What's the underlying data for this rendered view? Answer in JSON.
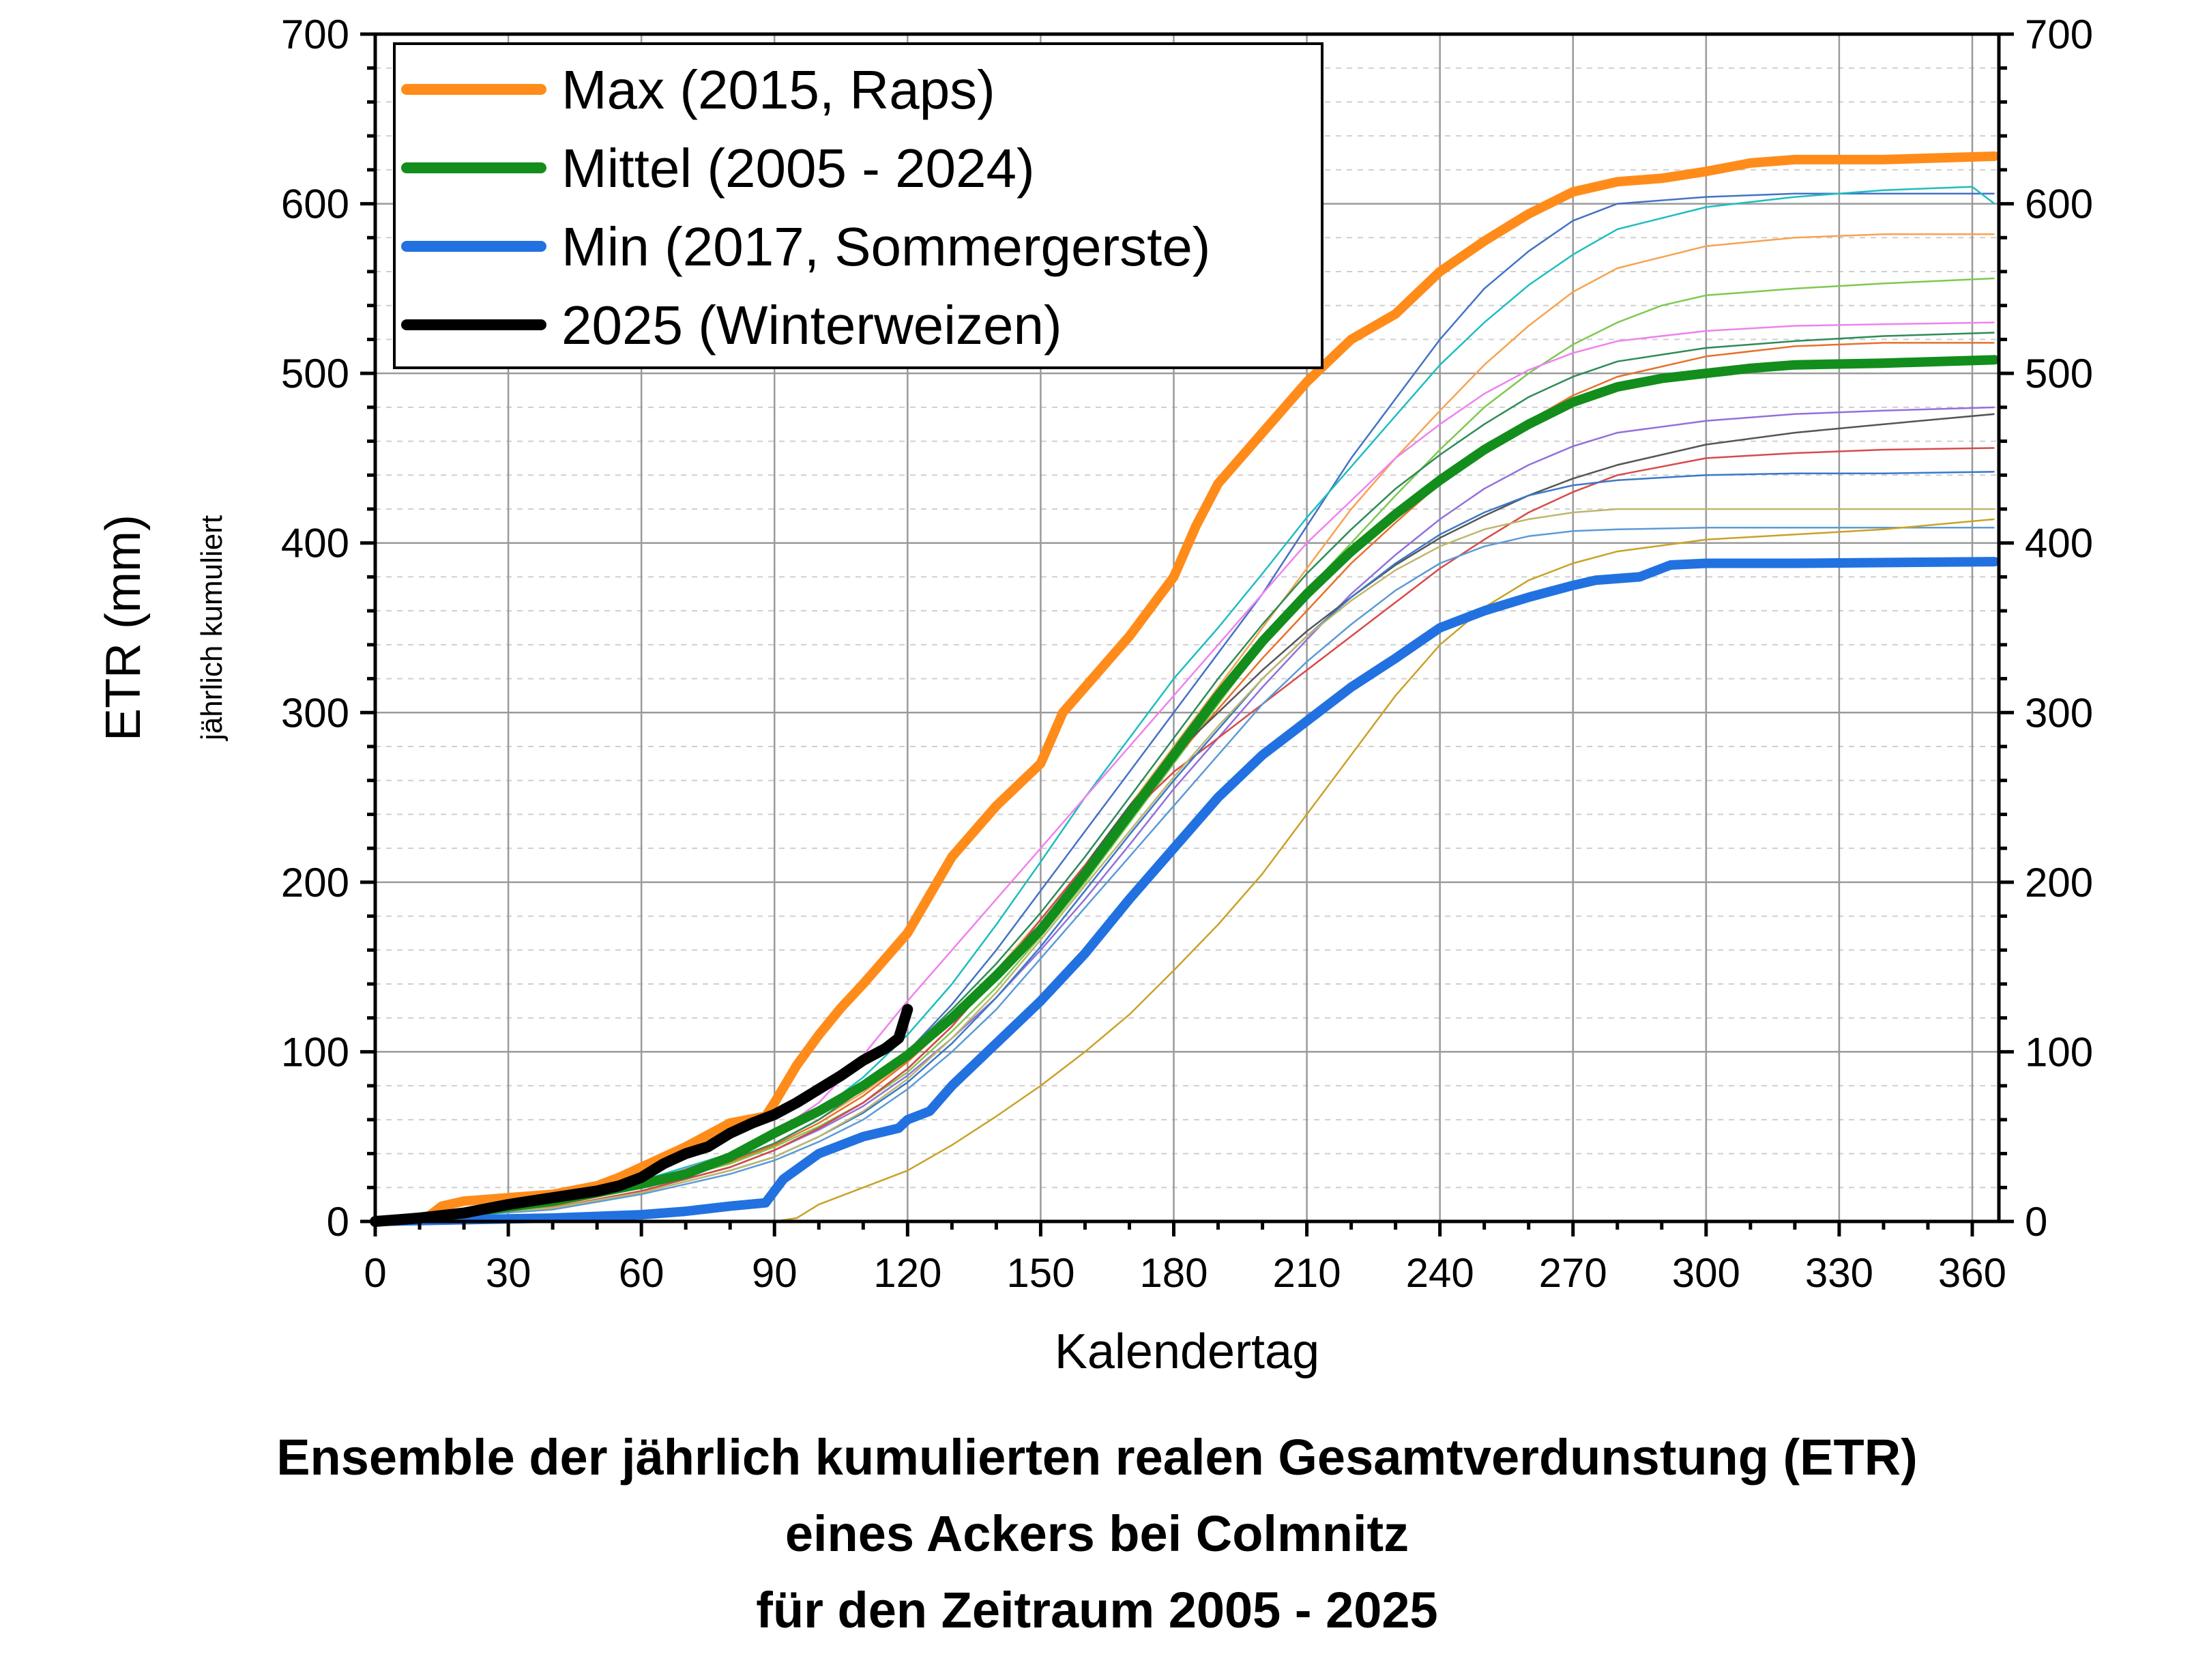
{
  "chart_data": {
    "type": "line",
    "title_lines": [
      "Ensemble der jährlich kumulierten realen Gesamtverdunstung (ETR)",
      "eines Ackers bei Colmnitz",
      "für den Zeitraum 2005 - 2025"
    ],
    "xlabel": "Kalendertag",
    "ylabel": "ETR (mm)",
    "ylabel_sub": "jährlich kumuliert",
    "xlim": [
      0,
      366
    ],
    "ylim": [
      0,
      700
    ],
    "xticks": [
      "0",
      "30",
      "60",
      "90",
      "120",
      "150",
      "180",
      "210",
      "240",
      "270",
      "300",
      "330",
      "360"
    ],
    "yticks": [
      "0",
      "100",
      "200",
      "300",
      "400",
      "500",
      "600",
      "700"
    ],
    "grid": true,
    "legend_position": "top-left",
    "legend": [
      {
        "label": "Max (2015, Raps)",
        "color": "#ff8c1a"
      },
      {
        "label": "Mittel (2005 - 2024)",
        "color": "#138d1c"
      },
      {
        "label": "Min (2017, Sommergerste)",
        "color": "#2271e0"
      },
      {
        "label": "2025 (Winterweizen)",
        "color": "#000000"
      }
    ],
    "series": [
      {
        "name": "Max (2015, Raps)",
        "color": "#ff8c1a",
        "width": 14,
        "kind": "main",
        "x": [
          0,
          12,
          15,
          20,
          30,
          40,
          50,
          55,
          60,
          70,
          80,
          88,
          90,
          95,
          100,
          105,
          110,
          115,
          120,
          130,
          140,
          150,
          155,
          160,
          170,
          180,
          185,
          190,
          200,
          210,
          220,
          230,
          240,
          250,
          260,
          270,
          280,
          290,
          300,
          310,
          320,
          340,
          365
        ],
        "y": [
          0,
          3,
          9,
          12,
          14,
          16,
          21,
          26,
          32,
          44,
          58,
          62,
          70,
          92,
          110,
          126,
          140,
          155,
          170,
          215,
          245,
          270,
          300,
          315,
          345,
          380,
          410,
          435,
          465,
          495,
          520,
          535,
          560,
          578,
          594,
          607,
          613,
          615,
          619,
          624,
          626,
          626,
          628
        ]
      },
      {
        "name": "Mittel (2005 - 2024)",
        "color": "#138d1c",
        "width": 14,
        "kind": "main",
        "x": [
          0,
          20,
          40,
          60,
          70,
          80,
          90,
          100,
          110,
          120,
          130,
          140,
          150,
          160,
          170,
          180,
          190,
          200,
          210,
          220,
          230,
          240,
          250,
          260,
          270,
          280,
          290,
          300,
          310,
          320,
          340,
          365
        ],
        "y": [
          0,
          5,
          12,
          22,
          28,
          38,
          52,
          65,
          80,
          98,
          120,
          145,
          172,
          205,
          240,
          275,
          310,
          342,
          370,
          395,
          417,
          437,
          455,
          470,
          483,
          492,
          497,
          500,
          503,
          505,
          506,
          508
        ]
      },
      {
        "name": "Min (2017, Sommergerste)",
        "color": "#2271e0",
        "width": 14,
        "kind": "main",
        "x": [
          0,
          20,
          40,
          60,
          70,
          80,
          88,
          92,
          100,
          110,
          118,
          120,
          125,
          130,
          140,
          150,
          160,
          170,
          180,
          190,
          200,
          210,
          220,
          230,
          240,
          250,
          260,
          270,
          275,
          285,
          292,
          300,
          320,
          365
        ],
        "y": [
          0,
          1,
          2,
          4,
          6,
          9,
          11,
          25,
          40,
          50,
          55,
          60,
          65,
          80,
          105,
          130,
          158,
          190,
          220,
          250,
          275,
          295,
          315,
          332,
          350,
          360,
          368,
          375,
          378,
          380,
          387,
          388,
          388,
          389
        ]
      },
      {
        "name": "2025 (Winterweizen)",
        "color": "#000000",
        "width": 16,
        "kind": "main",
        "x": [
          0,
          10,
          20,
          30,
          40,
          50,
          55,
          60,
          65,
          70,
          75,
          80,
          85,
          90,
          95,
          100,
          105,
          110,
          115,
          118,
          120
        ],
        "y": [
          0,
          2,
          5,
          10,
          14,
          18,
          21,
          26,
          34,
          40,
          44,
          52,
          58,
          63,
          70,
          78,
          86,
          95,
          102,
          108,
          125
        ]
      },
      {
        "kind": "ensemble",
        "color": "#4472c4",
        "width": 2.5,
        "x": [
          0,
          40,
          60,
          80,
          90,
          100,
          110,
          120,
          130,
          140,
          150,
          160,
          170,
          180,
          190,
          200,
          210,
          220,
          230,
          240,
          250,
          260,
          270,
          280,
          300,
          320,
          340,
          365
        ],
        "y": [
          0,
          10,
          22,
          36,
          46,
          60,
          78,
          100,
          128,
          160,
          195,
          230,
          265,
          300,
          335,
          370,
          410,
          450,
          485,
          520,
          550,
          572,
          590,
          600,
          604,
          606,
          606,
          606
        ]
      },
      {
        "kind": "ensemble",
        "color": "#1ebdc0",
        "width": 2.5,
        "x": [
          0,
          40,
          60,
          80,
          90,
          100,
          110,
          120,
          130,
          140,
          150,
          160,
          170,
          180,
          190,
          200,
          210,
          220,
          230,
          240,
          250,
          260,
          270,
          280,
          300,
          320,
          340,
          360,
          365
        ],
        "y": [
          0,
          11,
          24,
          40,
          50,
          65,
          85,
          110,
          140,
          175,
          212,
          250,
          285,
          320,
          350,
          382,
          415,
          445,
          475,
          505,
          530,
          552,
          570,
          585,
          598,
          604,
          608,
          610,
          600
        ]
      },
      {
        "kind": "ensemble",
        "color": "#f6a351",
        "width": 2.5,
        "x": [
          0,
          40,
          60,
          80,
          90,
          100,
          110,
          120,
          130,
          140,
          150,
          160,
          170,
          180,
          190,
          200,
          210,
          220,
          230,
          240,
          250,
          260,
          270,
          280,
          300,
          320,
          340,
          365
        ],
        "y": [
          0,
          10,
          22,
          36,
          46,
          60,
          76,
          95,
          120,
          148,
          178,
          210,
          245,
          280,
          315,
          350,
          385,
          420,
          450,
          478,
          505,
          528,
          548,
          562,
          575,
          580,
          582,
          582
        ]
      },
      {
        "kind": "ensemble",
        "color": "#7ec850",
        "width": 2.5,
        "x": [
          0,
          40,
          60,
          80,
          90,
          100,
          110,
          120,
          130,
          140,
          150,
          160,
          170,
          180,
          190,
          200,
          210,
          220,
          230,
          240,
          250,
          260,
          270,
          280,
          290,
          300,
          320,
          340,
          365
        ],
        "y": [
          0,
          9,
          20,
          34,
          44,
          56,
          70,
          88,
          112,
          138,
          168,
          200,
          235,
          270,
          305,
          340,
          372,
          400,
          428,
          455,
          480,
          500,
          517,
          530,
          540,
          546,
          550,
          553,
          556
        ]
      },
      {
        "kind": "ensemble",
        "color": "#ee82ee",
        "width": 2.5,
        "x": [
          0,
          40,
          60,
          80,
          90,
          100,
          110,
          120,
          130,
          140,
          150,
          160,
          170,
          180,
          190,
          200,
          210,
          220,
          230,
          240,
          250,
          260,
          270,
          280,
          300,
          320,
          340,
          365
        ],
        "y": [
          0,
          10,
          22,
          40,
          52,
          70,
          98,
          130,
          160,
          190,
          220,
          250,
          280,
          310,
          340,
          370,
          400,
          425,
          450,
          470,
          488,
          502,
          512,
          519,
          525,
          528,
          529,
          530
        ]
      },
      {
        "kind": "ensemble",
        "color": "#2e8b57",
        "width": 2.5,
        "x": [
          0,
          40,
          60,
          80,
          90,
          100,
          110,
          120,
          130,
          140,
          150,
          160,
          170,
          180,
          190,
          200,
          210,
          220,
          230,
          240,
          250,
          260,
          270,
          280,
          300,
          320,
          340,
          365
        ],
        "y": [
          0,
          9,
          21,
          36,
          46,
          60,
          78,
          100,
          125,
          152,
          182,
          215,
          250,
          285,
          320,
          352,
          382,
          408,
          432,
          452,
          470,
          486,
          498,
          507,
          515,
          519,
          522,
          524
        ]
      },
      {
        "kind": "ensemble",
        "color": "#e8702a",
        "width": 2.5,
        "x": [
          0,
          40,
          60,
          80,
          90,
          100,
          110,
          120,
          130,
          140,
          150,
          160,
          170,
          180,
          190,
          200,
          210,
          220,
          230,
          240,
          250,
          260,
          270,
          280,
          300,
          320,
          340,
          365
        ],
        "y": [
          0,
          9,
          20,
          35,
          45,
          58,
          74,
          94,
          118,
          145,
          175,
          208,
          240,
          272,
          302,
          332,
          360,
          388,
          412,
          435,
          455,
          472,
          487,
          498,
          510,
          516,
          518,
          518
        ]
      },
      {
        "kind": "ensemble",
        "color": "#9370db",
        "width": 2.5,
        "x": [
          0,
          40,
          60,
          80,
          90,
          100,
          110,
          120,
          130,
          140,
          150,
          160,
          170,
          180,
          190,
          200,
          210,
          220,
          230,
          240,
          250,
          260,
          270,
          280,
          300,
          320,
          340,
          365
        ],
        "y": [
          0,
          8,
          18,
          32,
          42,
          54,
          68,
          86,
          108,
          132,
          160,
          190,
          222,
          255,
          285,
          315,
          343,
          370,
          393,
          414,
          432,
          446,
          457,
          465,
          472,
          476,
          478,
          480
        ]
      },
      {
        "kind": "ensemble",
        "color": "#555555",
        "width": 2.5,
        "x": [
          0,
          40,
          60,
          80,
          90,
          100,
          110,
          120,
          130,
          140,
          150,
          160,
          170,
          180,
          190,
          200,
          210,
          220,
          230,
          240,
          250,
          260,
          270,
          280,
          300,
          320,
          340,
          365
        ],
        "y": [
          0,
          8,
          18,
          32,
          42,
          55,
          70,
          90,
          115,
          145,
          178,
          210,
          245,
          275,
          300,
          325,
          348,
          368,
          387,
          403,
          416,
          428,
          438,
          446,
          458,
          465,
          470,
          476
        ]
      },
      {
        "kind": "ensemble",
        "color": "#d84a4a",
        "width": 2.5,
        "x": [
          0,
          40,
          60,
          80,
          90,
          100,
          110,
          120,
          130,
          140,
          150,
          160,
          170,
          180,
          190,
          200,
          210,
          220,
          230,
          240,
          250,
          260,
          270,
          280,
          300,
          320,
          340,
          365
        ],
        "y": [
          0,
          8,
          18,
          32,
          42,
          55,
          70,
          90,
          115,
          145,
          178,
          210,
          240,
          265,
          285,
          305,
          325,
          345,
          365,
          385,
          402,
          418,
          430,
          440,
          450,
          453,
          455,
          456
        ]
      },
      {
        "kind": "ensemble",
        "color": "#3b78c8",
        "width": 2.5,
        "x": [
          0,
          40,
          60,
          80,
          90,
          100,
          110,
          120,
          130,
          140,
          150,
          160,
          170,
          180,
          190,
          200,
          210,
          220,
          230,
          240,
          250,
          260,
          270,
          280,
          300,
          320,
          340,
          365
        ],
        "y": [
          0,
          8,
          17,
          30,
          38,
          50,
          64,
          82,
          105,
          132,
          162,
          195,
          228,
          260,
          290,
          320,
          345,
          368,
          388,
          405,
          418,
          428,
          434,
          437,
          440,
          441,
          441,
          442
        ]
      },
      {
        "kind": "ensemble",
        "color": "#5b9bd5",
        "width": 2.5,
        "x": [
          0,
          40,
          60,
          80,
          90,
          100,
          110,
          120,
          130,
          140,
          150,
          160,
          170,
          180,
          190,
          200,
          210,
          220,
          230,
          240,
          250,
          260,
          270,
          280,
          300,
          320,
          340,
          365
        ],
        "y": [
          0,
          7,
          16,
          28,
          36,
          47,
          60,
          78,
          100,
          125,
          155,
          185,
          215,
          245,
          275,
          305,
          330,
          352,
          372,
          388,
          398,
          404,
          407,
          408,
          409,
          409,
          409,
          409
        ]
      },
      {
        "kind": "ensemble",
        "color": "#bdb76b",
        "width": 2.5,
        "x": [
          0,
          40,
          60,
          80,
          90,
          100,
          110,
          120,
          130,
          140,
          150,
          160,
          170,
          180,
          190,
          200,
          210,
          220,
          230,
          240,
          250,
          260,
          270,
          280,
          300,
          320,
          340,
          365
        ],
        "y": [
          0,
          8,
          17,
          30,
          38,
          50,
          65,
          84,
          108,
          135,
          166,
          198,
          230,
          262,
          292,
          320,
          345,
          366,
          384,
          398,
          408,
          414,
          418,
          420,
          420,
          420,
          420,
          420
        ]
      },
      {
        "kind": "ensemble",
        "color": "#c9a227",
        "width": 2.5,
        "x": [
          0,
          90,
          95,
          100,
          110,
          120,
          130,
          140,
          150,
          160,
          170,
          180,
          190,
          200,
          210,
          220,
          230,
          240,
          250,
          260,
          270,
          280,
          300,
          320,
          340,
          365
        ],
        "y": [
          0,
          0,
          2,
          10,
          20,
          30,
          45,
          62,
          80,
          100,
          122,
          148,
          175,
          205,
          240,
          275,
          310,
          340,
          362,
          378,
          388,
          395,
          402,
          405,
          408,
          414
        ]
      }
    ]
  }
}
